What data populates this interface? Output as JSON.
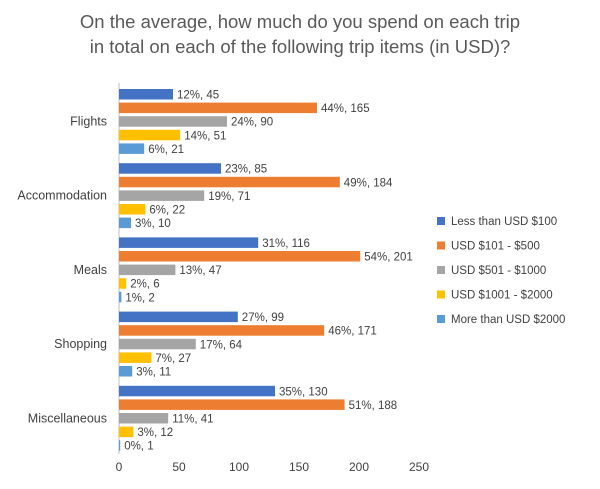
{
  "chart_data": {
    "type": "bar",
    "orientation": "horizontal",
    "title_lines": [
      "On the average, how much do you spend on each trip",
      "in total on each of the following trip items (in USD)?"
    ],
    "categories": [
      "Flights",
      "Accommodation",
      "Meals",
      "Shopping",
      "Miscellaneous"
    ],
    "xlim": [
      0,
      250
    ],
    "x_ticks": [
      0,
      50,
      100,
      150,
      200,
      250
    ],
    "grid": false,
    "legend_position": "right",
    "series": [
      {
        "name": "Less than USD $100",
        "color": "#4472C4",
        "values": [
          45,
          85,
          116,
          99,
          130
        ],
        "labels": [
          "12%, 45",
          "23%, 85",
          "31%, 116",
          "27%, 99",
          "35%, 130"
        ]
      },
      {
        "name": "USD $101 - $500",
        "color": "#ED7D31",
        "values": [
          165,
          184,
          201,
          171,
          188
        ],
        "labels": [
          "44%, 165",
          "49%, 184",
          "54%, 201",
          "46%, 171",
          "51%, 188"
        ]
      },
      {
        "name": "USD $501 - $1000",
        "color": "#A5A5A5",
        "values": [
          90,
          71,
          47,
          64,
          41
        ],
        "labels": [
          "24%, 90",
          "19%, 71",
          "13%, 47",
          "17%, 64",
          "11%, 41"
        ]
      },
      {
        "name": "USD $1001 - $2000",
        "color": "#FFC000",
        "values": [
          51,
          22,
          6,
          27,
          12
        ],
        "labels": [
          "14%, 51",
          "6%, 22",
          "2%, 6",
          "7%, 27",
          "3%, 12"
        ]
      },
      {
        "name": "More than USD $2000",
        "color": "#5B9BD5",
        "values": [
          21,
          10,
          2,
          11,
          1
        ],
        "labels": [
          "6%, 21",
          "3%, 10",
          "1%, 2",
          "3%, 11",
          "0%, 1"
        ]
      }
    ]
  }
}
